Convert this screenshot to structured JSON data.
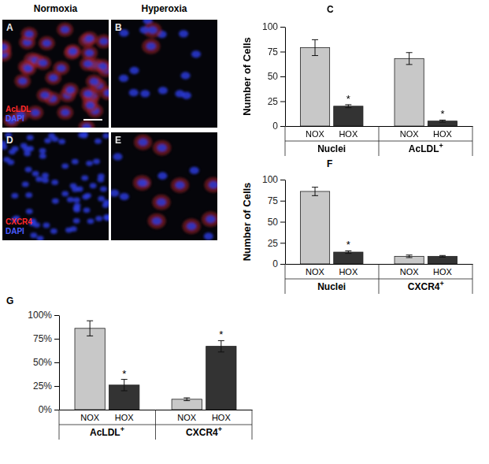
{
  "micrographs": {
    "columns": [
      "Normoxia",
      "Hyperoxia"
    ],
    "panels": [
      {
        "letter": "A",
        "labels": [
          "AcLDL",
          "DAPI"
        ]
      },
      {
        "letter": "B"
      },
      {
        "letter": "D",
        "labels": [
          "CXCR4",
          "DAPI"
        ]
      },
      {
        "letter": "E"
      }
    ]
  },
  "chart_data": [
    {
      "type": "bar",
      "title": "C",
      "y_label": "Number of Cells",
      "categories": [
        "Nuclei",
        "AcLDL+"
      ],
      "series": [
        {
          "name": "NOX",
          "color": "#c8c8c8",
          "values": [
            79,
            68
          ],
          "errors": [
            8,
            6
          ],
          "annotations": [
            null,
            null
          ]
        },
        {
          "name": "HOX",
          "color": "#333333",
          "values": [
            20,
            5
          ],
          "errors": [
            1.5,
            1
          ],
          "annotations": [
            "*",
            "*"
          ]
        }
      ],
      "ylim": [
        0,
        100
      ],
      "yticks": [
        0,
        25,
        50,
        75,
        100
      ]
    },
    {
      "type": "bar",
      "title": "F",
      "y_label": "Number of Cells",
      "categories": [
        "Nuclei",
        "CXCR4+"
      ],
      "series": [
        {
          "name": "NOX",
          "color": "#c8c8c8",
          "values": [
            86,
            9
          ],
          "errors": [
            5,
            1.5
          ],
          "annotations": [
            null,
            null
          ]
        },
        {
          "name": "HOX",
          "color": "#333333",
          "values": [
            14,
            9
          ],
          "errors": [
            1.5,
            1
          ],
          "annotations": [
            "*",
            null
          ]
        }
      ],
      "ylim": [
        0,
        100
      ],
      "yticks": [
        0,
        25,
        50,
        75,
        100
      ]
    },
    {
      "type": "bar",
      "title": "G",
      "categories": [
        "AcLDL+",
        "CXCR4+"
      ],
      "series": [
        {
          "name": "NOX",
          "color": "#c8c8c8",
          "values": [
            86,
            11
          ],
          "errors": [
            8,
            1.5
          ],
          "annotations": [
            null,
            null
          ]
        },
        {
          "name": "HOX",
          "color": "#333333",
          "values": [
            26,
            67
          ],
          "errors": [
            6,
            6
          ],
          "annotations": [
            "*",
            "*"
          ]
        }
      ],
      "ylim": [
        0,
        100
      ],
      "yticks": [
        {
          "value": 0,
          "label": "0%"
        },
        {
          "value": 25,
          "label": "25%"
        },
        {
          "value": 50,
          "label": "50%"
        },
        {
          "value": 75,
          "label": "75%"
        },
        {
          "value": 100,
          "label": "100%"
        }
      ]
    }
  ]
}
